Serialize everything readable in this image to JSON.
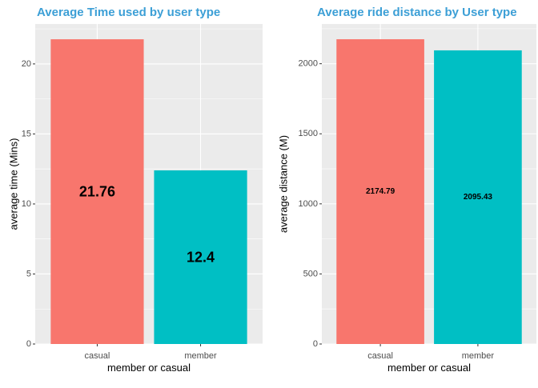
{
  "colors": {
    "title": "#3c9fd6",
    "panel_bg": "#ebebeb",
    "grid_major": "#ffffff",
    "casual": "#f8766d",
    "member": "#00bfc4"
  },
  "chart_data": [
    {
      "type": "bar",
      "title": "Average Time used by user type",
      "xlabel": "member or casual",
      "ylabel": "average time (Mins)",
      "categories": [
        "casual",
        "member"
      ],
      "values": [
        21.76,
        12.4
      ],
      "value_labels": [
        "21.76",
        "12.4"
      ],
      "ylim": [
        0,
        22.85
      ],
      "yticks": [
        0,
        5,
        10,
        15,
        20
      ],
      "ytick_labels": [
        "0",
        "5",
        "10",
        "15",
        "20"
      ],
      "grid": true,
      "legend": "none"
    },
    {
      "type": "bar",
      "title": "Average ride distance by User type",
      "xlabel": "member or casual",
      "ylabel": "average distance (M)",
      "categories": [
        "casual",
        "member"
      ],
      "values": [
        2174.79,
        2095.43
      ],
      "value_labels": [
        "2174.79",
        "2095.43"
      ],
      "ylim": [
        0,
        2283.5
      ],
      "yticks": [
        0,
        500,
        1000,
        1500,
        2000
      ],
      "ytick_labels": [
        "0",
        "500",
        "1000",
        "1500",
        "2000"
      ],
      "grid": true,
      "legend": "none"
    }
  ]
}
